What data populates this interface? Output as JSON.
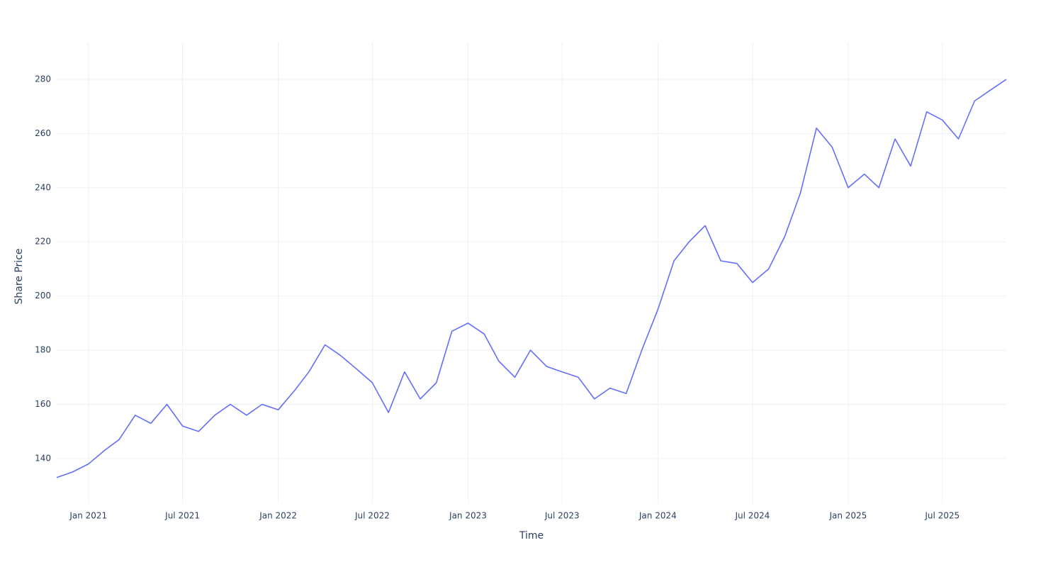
{
  "chart_data": {
    "type": "line",
    "x_label": "Time",
    "y_label": "Share Price",
    "x": [
      "2020-11",
      "2020-12",
      "2021-01",
      "2021-02",
      "2021-03",
      "2021-04",
      "2021-05",
      "2021-06",
      "2021-07",
      "2021-08",
      "2021-09",
      "2021-10",
      "2021-11",
      "2021-12",
      "2022-01",
      "2022-02",
      "2022-03",
      "2022-04",
      "2022-05",
      "2022-06",
      "2022-07",
      "2022-08",
      "2022-09",
      "2022-10",
      "2022-11",
      "2022-12",
      "2023-01",
      "2023-02",
      "2023-03",
      "2023-04",
      "2023-05",
      "2023-06",
      "2023-07",
      "2023-08",
      "2023-09",
      "2023-10",
      "2023-11",
      "2023-12",
      "2024-01",
      "2024-02",
      "2024-03",
      "2024-04",
      "2024-05",
      "2024-06",
      "2024-07",
      "2024-08",
      "2024-09",
      "2024-10",
      "2024-11",
      "2024-12",
      "2025-01",
      "2025-02",
      "2025-03",
      "2025-04",
      "2025-05",
      "2025-06",
      "2025-07",
      "2025-08",
      "2025-09",
      "2025-10",
      "2025-11"
    ],
    "series": [
      {
        "name": "Share Price",
        "color": "#636efa",
        "values": [
          133,
          135,
          138,
          143,
          147,
          156,
          153,
          160,
          152,
          150,
          156,
          160,
          156,
          160,
          158,
          165,
          172,
          182,
          178,
          173,
          168,
          157,
          172,
          162,
          168,
          187,
          190,
          186,
          176,
          170,
          180,
          174,
          172,
          170,
          162,
          166,
          164,
          180,
          195,
          213,
          220,
          226,
          213,
          212,
          205,
          210,
          222,
          238,
          262,
          255,
          240,
          245,
          240,
          258,
          248,
          268,
          265,
          258,
          272,
          276,
          280
        ]
      }
    ],
    "xlim": [
      "2020-11",
      "2025-11"
    ],
    "xticks": [
      {
        "value": "2021-01",
        "label": "Jan 2021"
      },
      {
        "value": "2021-07",
        "label": "Jul 2021"
      },
      {
        "value": "2022-01",
        "label": "Jan 2022"
      },
      {
        "value": "2022-07",
        "label": "Jul 2022"
      },
      {
        "value": "2023-01",
        "label": "Jan 2023"
      },
      {
        "value": "2023-07",
        "label": "Jul 2023"
      },
      {
        "value": "2024-01",
        "label": "Jan 2024"
      },
      {
        "value": "2024-07",
        "label": "Jul 2024"
      },
      {
        "value": "2025-01",
        "label": "Jan 2025"
      },
      {
        "value": "2025-07",
        "label": "Jul 2025"
      }
    ],
    "ylim": [
      123.5,
      293.6
    ],
    "yticks": [
      140,
      160,
      180,
      200,
      220,
      240,
      260,
      280
    ],
    "grid": true
  }
}
